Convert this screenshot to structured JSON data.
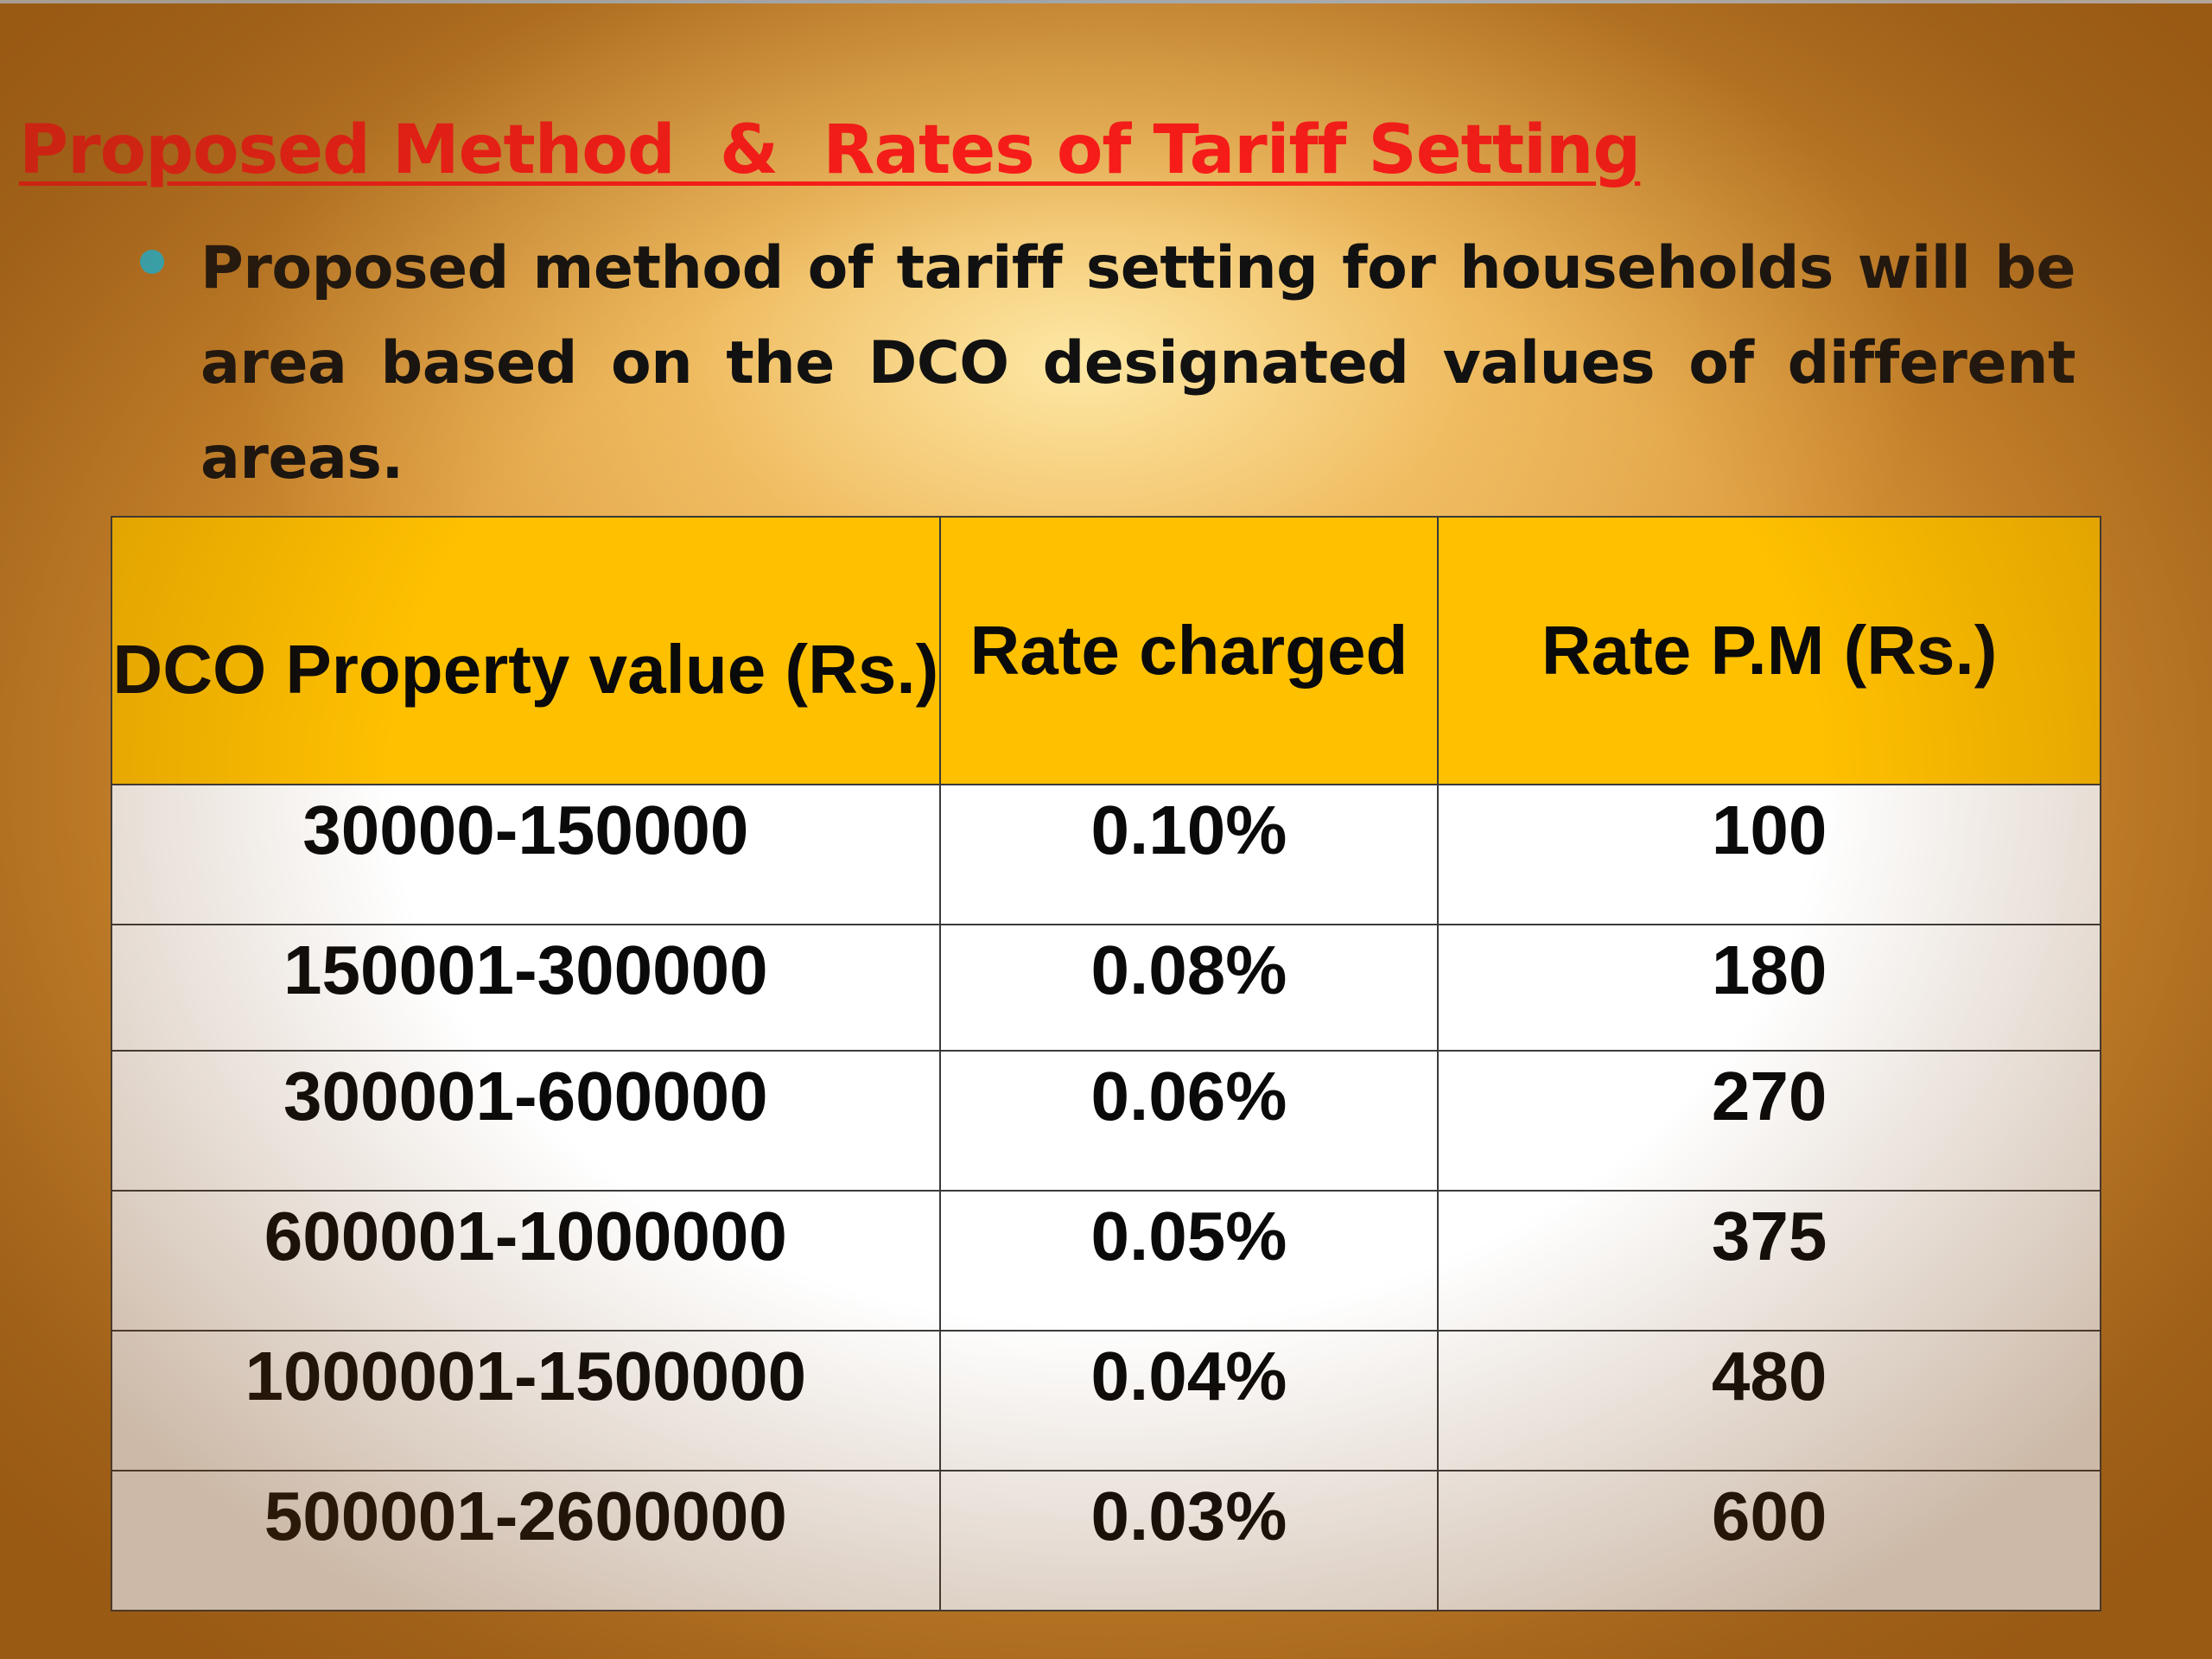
{
  "slide": {
    "title": "Proposed Method  &  Rates of Tariff Setting",
    "bullet": "Proposed method of tariff setting  for households will be area based on the DCO designated values of different areas.",
    "colors": {
      "title": "#ff1a1a",
      "bullet_dot": "#27c4e0",
      "table_header": "#ffc000"
    }
  },
  "table": {
    "headers": [
      "DCO Property value (Rs.)",
      "Rate charged",
      "Rate P.M (Rs.)"
    ],
    "rows": [
      [
        "30000-150000",
        "0.10%",
        "100"
      ],
      [
        "150001-300000",
        "0.08%",
        "180"
      ],
      [
        "300001-600000",
        "0.06%",
        "270"
      ],
      [
        "600001-1000000",
        "0.05%",
        "375"
      ],
      [
        "1000001-1500000",
        "0.04%",
        "480"
      ],
      [
        "500001-2600000",
        "0.03%",
        "600"
      ]
    ]
  }
}
